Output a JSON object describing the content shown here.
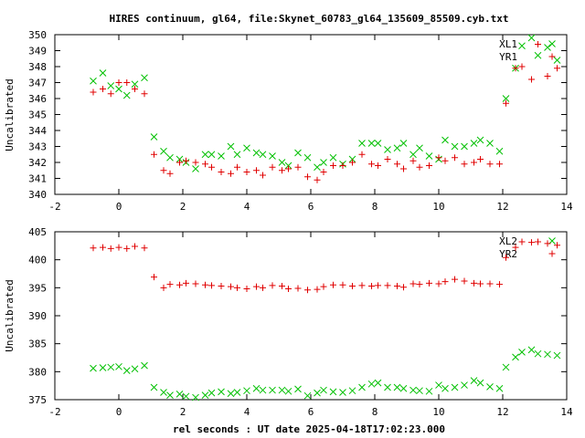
{
  "chart_data": [
    {
      "type": "scatter",
      "title": "HIRES continuum, gl64, file:Skynet_60783_gl64_135609_85509.cyb.txt",
      "xlabel": "",
      "ylabel": "Uncalibrated",
      "xlim": [
        -2,
        14
      ],
      "ylim": [
        340,
        350
      ],
      "x_ticks": [
        "-2",
        "0",
        "2",
        "4",
        "6",
        "8",
        "10",
        "12",
        "14"
      ],
      "y_ticks": [
        "340",
        "341",
        "342",
        "343",
        "344",
        "345",
        "346",
        "347",
        "348",
        "349",
        "350"
      ],
      "legend_placement": "top-right",
      "grid": false,
      "series": [
        {
          "name": "XL1",
          "marker": "x",
          "color": "#00c000",
          "points": [
            [
              -0.8,
              347.1
            ],
            [
              -0.5,
              347.6
            ],
            [
              -0.25,
              346.8
            ],
            [
              0.0,
              346.6
            ],
            [
              0.25,
              346.2
            ],
            [
              0.5,
              346.9
            ],
            [
              0.8,
              347.3
            ],
            [
              1.1,
              343.6
            ],
            [
              1.4,
              342.7
            ],
            [
              1.6,
              342.3
            ],
            [
              1.9,
              342.2
            ],
            [
              2.1,
              342.0
            ],
            [
              2.4,
              341.6
            ],
            [
              2.7,
              342.5
            ],
            [
              2.9,
              342.5
            ],
            [
              3.2,
              342.4
            ],
            [
              3.5,
              343.0
            ],
            [
              3.7,
              342.5
            ],
            [
              4.0,
              342.9
            ],
            [
              4.3,
              342.6
            ],
            [
              4.5,
              342.5
            ],
            [
              4.8,
              342.4
            ],
            [
              5.1,
              342.0
            ],
            [
              5.3,
              341.8
            ],
            [
              5.6,
              342.6
            ],
            [
              5.9,
              342.3
            ],
            [
              6.2,
              341.7
            ],
            [
              6.4,
              342.0
            ],
            [
              6.7,
              342.3
            ],
            [
              7.0,
              341.9
            ],
            [
              7.3,
              342.2
            ],
            [
              7.6,
              343.2
            ],
            [
              7.9,
              343.2
            ],
            [
              8.1,
              343.2
            ],
            [
              8.4,
              342.8
            ],
            [
              8.7,
              342.9
            ],
            [
              8.9,
              343.2
            ],
            [
              9.2,
              342.5
            ],
            [
              9.4,
              342.9
            ],
            [
              9.7,
              342.4
            ],
            [
              10.0,
              342.2
            ],
            [
              10.2,
              343.4
            ],
            [
              10.5,
              343.0
            ],
            [
              10.8,
              343.0
            ],
            [
              11.1,
              343.2
            ],
            [
              11.3,
              343.4
            ],
            [
              11.6,
              343.2
            ],
            [
              11.9,
              342.7
            ],
            [
              12.1,
              346.0
            ],
            [
              12.4,
              347.9
            ],
            [
              12.6,
              349.3
            ],
            [
              12.9,
              349.8
            ],
            [
              13.1,
              348.7
            ],
            [
              13.4,
              349.2
            ],
            [
              13.7,
              348.4
            ]
          ]
        },
        {
          "name": "YR1",
          "marker": "+",
          "color": "#e00000",
          "points": [
            [
              -0.8,
              346.4
            ],
            [
              -0.5,
              346.6
            ],
            [
              -0.25,
              346.3
            ],
            [
              0.0,
              347.0
            ],
            [
              0.25,
              347.0
            ],
            [
              0.5,
              346.6
            ],
            [
              0.8,
              346.3
            ],
            [
              1.1,
              342.5
            ],
            [
              1.4,
              341.5
            ],
            [
              1.6,
              341.3
            ],
            [
              1.9,
              342.0
            ],
            [
              2.1,
              342.1
            ],
            [
              2.4,
              342.0
            ],
            [
              2.7,
              341.9
            ],
            [
              2.9,
              341.7
            ],
            [
              3.2,
              341.4
            ],
            [
              3.5,
              341.3
            ],
            [
              3.7,
              341.7
            ],
            [
              4.0,
              341.4
            ],
            [
              4.3,
              341.5
            ],
            [
              4.5,
              341.2
            ],
            [
              4.8,
              341.7
            ],
            [
              5.1,
              341.5
            ],
            [
              5.3,
              341.6
            ],
            [
              5.6,
              341.7
            ],
            [
              5.9,
              341.1
            ],
            [
              6.2,
              340.9
            ],
            [
              6.4,
              341.4
            ],
            [
              6.7,
              341.8
            ],
            [
              7.0,
              341.8
            ],
            [
              7.3,
              342.0
            ],
            [
              7.6,
              342.5
            ],
            [
              7.9,
              341.9
            ],
            [
              8.1,
              341.8
            ],
            [
              8.4,
              342.2
            ],
            [
              8.7,
              341.9
            ],
            [
              8.9,
              341.6
            ],
            [
              9.2,
              342.1
            ],
            [
              9.4,
              341.7
            ],
            [
              9.7,
              341.8
            ],
            [
              10.0,
              342.3
            ],
            [
              10.2,
              342.1
            ],
            [
              10.5,
              342.3
            ],
            [
              10.8,
              341.9
            ],
            [
              11.1,
              342.0
            ],
            [
              11.3,
              342.2
            ],
            [
              11.6,
              341.9
            ],
            [
              11.9,
              341.9
            ],
            [
              12.1,
              345.7
            ],
            [
              12.4,
              347.9
            ],
            [
              12.6,
              348.0
            ],
            [
              12.9,
              347.2
            ],
            [
              13.1,
              349.4
            ],
            [
              13.4,
              347.4
            ],
            [
              13.7,
              347.9
            ]
          ]
        }
      ]
    },
    {
      "type": "scatter",
      "title": "",
      "xlabel": "rel seconds : UT date 2025-04-18T17:02:23.000",
      "ylabel": "Uncalibrated",
      "xlim": [
        -2,
        14
      ],
      "ylim": [
        375,
        405
      ],
      "x_ticks": [
        "-2",
        "0",
        "2",
        "4",
        "6",
        "8",
        "10",
        "12",
        "14"
      ],
      "y_ticks": [
        "375",
        "380",
        "385",
        "390",
        "395",
        "400",
        "405"
      ],
      "legend_placement": "top-right",
      "grid": false,
      "series": [
        {
          "name": "XL2",
          "marker": "x",
          "color": "#00c000",
          "points": [
            [
              -0.8,
              380.6
            ],
            [
              -0.5,
              380.7
            ],
            [
              -0.25,
              380.8
            ],
            [
              0.0,
              380.9
            ],
            [
              0.25,
              380.2
            ],
            [
              0.5,
              380.5
            ],
            [
              0.8,
              381.1
            ],
            [
              1.1,
              377.2
            ],
            [
              1.4,
              376.3
            ],
            [
              1.6,
              375.8
            ],
            [
              1.9,
              376.0
            ],
            [
              2.1,
              375.6
            ],
            [
              2.4,
              375.4
            ],
            [
              2.7,
              375.8
            ],
            [
              2.9,
              376.2
            ],
            [
              3.2,
              376.4
            ],
            [
              3.5,
              376.1
            ],
            [
              3.7,
              376.3
            ],
            [
              4.0,
              376.6
            ],
            [
              4.3,
              377.0
            ],
            [
              4.5,
              376.7
            ],
            [
              4.8,
              376.7
            ],
            [
              5.1,
              376.7
            ],
            [
              5.3,
              376.5
            ],
            [
              5.6,
              376.9
            ],
            [
              5.9,
              375.7
            ],
            [
              6.2,
              376.2
            ],
            [
              6.4,
              376.7
            ],
            [
              6.7,
              376.4
            ],
            [
              7.0,
              376.3
            ],
            [
              7.3,
              376.6
            ],
            [
              7.6,
              377.2
            ],
            [
              7.9,
              377.8
            ],
            [
              8.1,
              378.0
            ],
            [
              8.4,
              377.2
            ],
            [
              8.7,
              377.2
            ],
            [
              8.9,
              377.0
            ],
            [
              9.2,
              376.7
            ],
            [
              9.4,
              376.6
            ],
            [
              9.7,
              376.5
            ],
            [
              10.0,
              377.6
            ],
            [
              10.2,
              377.0
            ],
            [
              10.5,
              377.2
            ],
            [
              10.8,
              377.6
            ],
            [
              11.1,
              378.4
            ],
            [
              11.3,
              378.0
            ],
            [
              11.6,
              377.3
            ],
            [
              11.9,
              377.0
            ],
            [
              12.1,
              380.8
            ],
            [
              12.4,
              382.6
            ],
            [
              12.6,
              383.5
            ],
            [
              12.9,
              383.9
            ],
            [
              13.1,
              383.2
            ],
            [
              13.4,
              383.1
            ],
            [
              13.7,
              382.9
            ]
          ]
        },
        {
          "name": "YR2",
          "marker": "+",
          "color": "#e00000",
          "points": [
            [
              -0.8,
              402.1
            ],
            [
              -0.5,
              402.2
            ],
            [
              -0.25,
              402.0
            ],
            [
              0.0,
              402.2
            ],
            [
              0.25,
              402.0
            ],
            [
              0.5,
              402.4
            ],
            [
              0.8,
              402.1
            ],
            [
              1.1,
              396.9
            ],
            [
              1.4,
              395.0
            ],
            [
              1.6,
              395.6
            ],
            [
              1.9,
              395.5
            ],
            [
              2.1,
              395.8
            ],
            [
              2.4,
              395.7
            ],
            [
              2.7,
              395.5
            ],
            [
              2.9,
              395.4
            ],
            [
              3.2,
              395.3
            ],
            [
              3.5,
              395.2
            ],
            [
              3.7,
              395.0
            ],
            [
              4.0,
              394.8
            ],
            [
              4.3,
              395.2
            ],
            [
              4.5,
              395.0
            ],
            [
              4.8,
              395.4
            ],
            [
              5.1,
              395.3
            ],
            [
              5.3,
              394.8
            ],
            [
              5.6,
              394.9
            ],
            [
              5.9,
              394.6
            ],
            [
              6.2,
              394.7
            ],
            [
              6.4,
              395.2
            ],
            [
              6.7,
              395.5
            ],
            [
              7.0,
              395.5
            ],
            [
              7.3,
              395.3
            ],
            [
              7.6,
              395.4
            ],
            [
              7.9,
              395.3
            ],
            [
              8.1,
              395.4
            ],
            [
              8.4,
              395.4
            ],
            [
              8.7,
              395.3
            ],
            [
              8.9,
              395.1
            ],
            [
              9.2,
              395.7
            ],
            [
              9.4,
              395.6
            ],
            [
              9.7,
              395.8
            ],
            [
              10.0,
              395.7
            ],
            [
              10.2,
              396.1
            ],
            [
              10.5,
              396.5
            ],
            [
              10.8,
              396.2
            ],
            [
              11.1,
              395.8
            ],
            [
              11.3,
              395.7
            ],
            [
              11.6,
              395.7
            ],
            [
              11.9,
              395.6
            ],
            [
              12.1,
              400.4
            ],
            [
              12.4,
              402.2
            ],
            [
              12.6,
              403.2
            ],
            [
              12.9,
              403.1
            ],
            [
              13.1,
              403.2
            ],
            [
              13.4,
              402.9
            ],
            [
              13.7,
              402.6
            ]
          ]
        }
      ]
    }
  ]
}
